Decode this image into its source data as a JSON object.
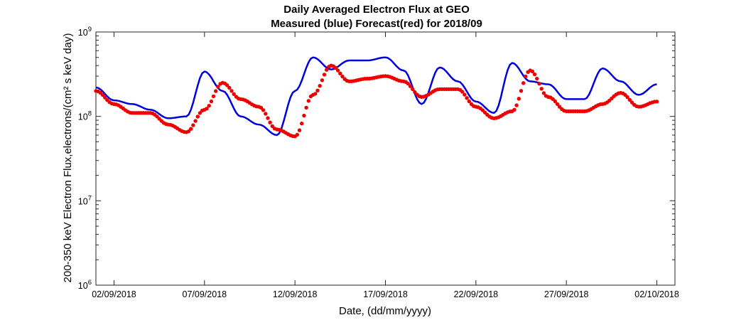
{
  "chart_data": {
    "type": "line",
    "title": "Daily Averaged Electron Flux at GEO",
    "subtitle": "Measured (blue) Forecast(red) for 2018/09",
    "xlabel": "Date, (dd/mm/yyyy)",
    "ylabel": "200-350 keV Electron Flux,electrons/(cm² s keV day)",
    "yscale": "log",
    "ylim": [
      1000000,
      1000000000
    ],
    "xlim": [
      "2018-09-01",
      "2018-10-03"
    ],
    "x_ticks": [
      "02/09/2018",
      "07/09/2018",
      "12/09/2018",
      "17/09/2018",
      "22/09/2018",
      "27/09/2018",
      "02/10/2018"
    ],
    "y_ticks": [
      "10^6",
      "10^7",
      "10^8",
      "10^9"
    ],
    "grid": false,
    "series": [
      {
        "color": "#0000dd",
        "style": "line",
        "points": [
          [
            "2018-09-01",
            220000000.0
          ],
          [
            "2018-09-02",
            155000000.0
          ],
          [
            "2018-09-03",
            140000000.0
          ],
          [
            "2018-09-04",
            120000000.0
          ],
          [
            "2018-09-05",
            95000000.0
          ],
          [
            "2018-09-06",
            100000000.0
          ],
          [
            "2018-09-07",
            340000000.0
          ],
          [
            "2018-09-08",
            200000000.0
          ],
          [
            "2018-09-09",
            100000000.0
          ],
          [
            "2018-09-10",
            80000000.0
          ],
          [
            "2018-09-11",
            60000000.0
          ],
          [
            "2018-09-12",
            200000000.0
          ],
          [
            "2018-09-13",
            500000000.0
          ],
          [
            "2018-09-14",
            360000000.0
          ],
          [
            "2018-09-15",
            460000000.0
          ],
          [
            "2018-09-16",
            460000000.0
          ],
          [
            "2018-09-17",
            500000000.0
          ],
          [
            "2018-09-18",
            350000000.0
          ],
          [
            "2018-09-19",
            140000000.0
          ],
          [
            "2018-09-20",
            380000000.0
          ],
          [
            "2018-09-21",
            260000000.0
          ],
          [
            "2018-09-22",
            150000000.0
          ],
          [
            "2018-09-23",
            110000000.0
          ],
          [
            "2018-09-24",
            430000000.0
          ],
          [
            "2018-09-25",
            260000000.0
          ],
          [
            "2018-09-26",
            240000000.0
          ],
          [
            "2018-09-27",
            160000000.0
          ],
          [
            "2018-09-28",
            160000000.0
          ],
          [
            "2018-09-29",
            370000000.0
          ],
          [
            "2018-09-30",
            260000000.0
          ],
          [
            "2018-10-01",
            180000000.0
          ],
          [
            "2018-10-02",
            240000000.0
          ]
        ]
      },
      {
        "color": "#ee0000",
        "style": "dots",
        "points": [
          [
            "2018-09-01",
            200000000.0
          ],
          [
            "2018-09-02",
            140000000.0
          ],
          [
            "2018-09-03",
            110000000.0
          ],
          [
            "2018-09-04",
            110000000.0
          ],
          [
            "2018-09-05",
            80000000.0
          ],
          [
            "2018-09-06",
            65000000.0
          ],
          [
            "2018-09-07",
            120000000.0
          ],
          [
            "2018-09-08",
            250000000.0
          ],
          [
            "2018-09-09",
            160000000.0
          ],
          [
            "2018-09-10",
            130000000.0
          ],
          [
            "2018-09-11",
            70000000.0
          ],
          [
            "2018-09-12",
            58000000.0
          ],
          [
            "2018-09-13",
            180000000.0
          ],
          [
            "2018-09-14",
            400000000.0
          ],
          [
            "2018-09-15",
            260000000.0
          ],
          [
            "2018-09-16",
            280000000.0
          ],
          [
            "2018-09-17",
            300000000.0
          ],
          [
            "2018-09-18",
            260000000.0
          ],
          [
            "2018-09-19",
            170000000.0
          ],
          [
            "2018-09-20",
            210000000.0
          ],
          [
            "2018-09-21",
            210000000.0
          ],
          [
            "2018-09-22",
            130000000.0
          ],
          [
            "2018-09-23",
            95000000.0
          ],
          [
            "2018-09-24",
            115000000.0
          ],
          [
            "2018-09-25",
            350000000.0
          ],
          [
            "2018-09-26",
            170000000.0
          ],
          [
            "2018-09-27",
            115000000.0
          ],
          [
            "2018-09-28",
            115000000.0
          ],
          [
            "2018-09-29",
            140000000.0
          ],
          [
            "2018-09-30",
            190000000.0
          ],
          [
            "2018-10-01",
            130000000.0
          ],
          [
            "2018-10-02",
            150000000.0
          ]
        ]
      }
    ]
  }
}
